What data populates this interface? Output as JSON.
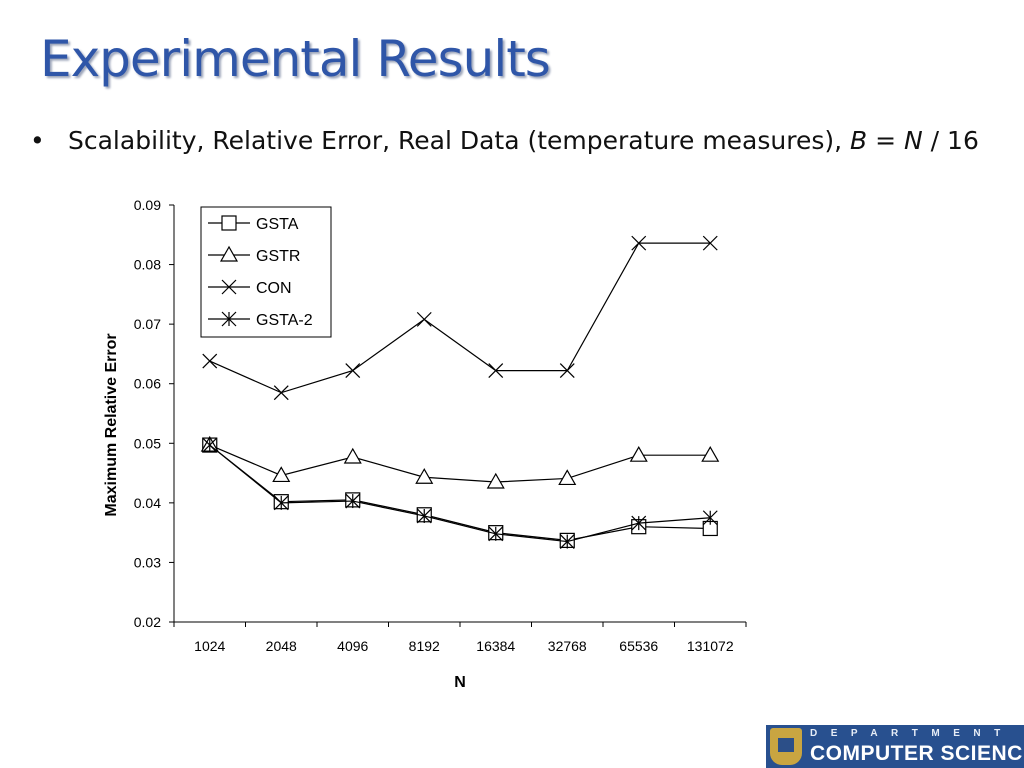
{
  "slide": {
    "title": "Experimental Results",
    "bullet": {
      "symbol": "•",
      "text_plain": "Scalability, Relative Error, Real Data (temperature measures), ",
      "var_b": "B",
      "eq": " = ",
      "var_n": "N",
      "rest": " / 16"
    }
  },
  "logo": {
    "line1": "DEPARTMENT OF",
    "line2": "COMPUTER SCIENCE",
    "color": "#28508f"
  },
  "chart_data": {
    "type": "line",
    "xlabel": "N",
    "ylabel": "Maximum Relative Error",
    "categories": [
      "1024",
      "2048",
      "4096",
      "8192",
      "16384",
      "32768",
      "65536",
      "131072"
    ],
    "ylim": [
      0.02,
      0.09
    ],
    "yticks": [
      "0.02",
      "0.03",
      "0.04",
      "0.05",
      "0.06",
      "0.07",
      "0.08",
      "0.09"
    ],
    "grid": false,
    "legend": "top-left",
    "series": [
      {
        "name": "GSTA",
        "marker": "square",
        "values": [
          0.0497,
          0.0402,
          0.0405,
          0.038,
          0.035,
          0.0337,
          0.036,
          0.0357
        ]
      },
      {
        "name": "GSTR",
        "marker": "triangle",
        "values": [
          0.0497,
          0.0446,
          0.0477,
          0.0443,
          0.0435,
          0.0441,
          0.048,
          0.048
        ]
      },
      {
        "name": "CON",
        "marker": "x",
        "values": [
          0.0638,
          0.0585,
          0.0622,
          0.0708,
          0.0622,
          0.0622,
          0.0836,
          0.0836
        ]
      },
      {
        "name": "GSTA-2",
        "marker": "star",
        "values": [
          0.0497,
          0.04,
          0.0403,
          0.0378,
          0.0348,
          0.0335,
          0.0366,
          0.0375
        ]
      }
    ]
  }
}
